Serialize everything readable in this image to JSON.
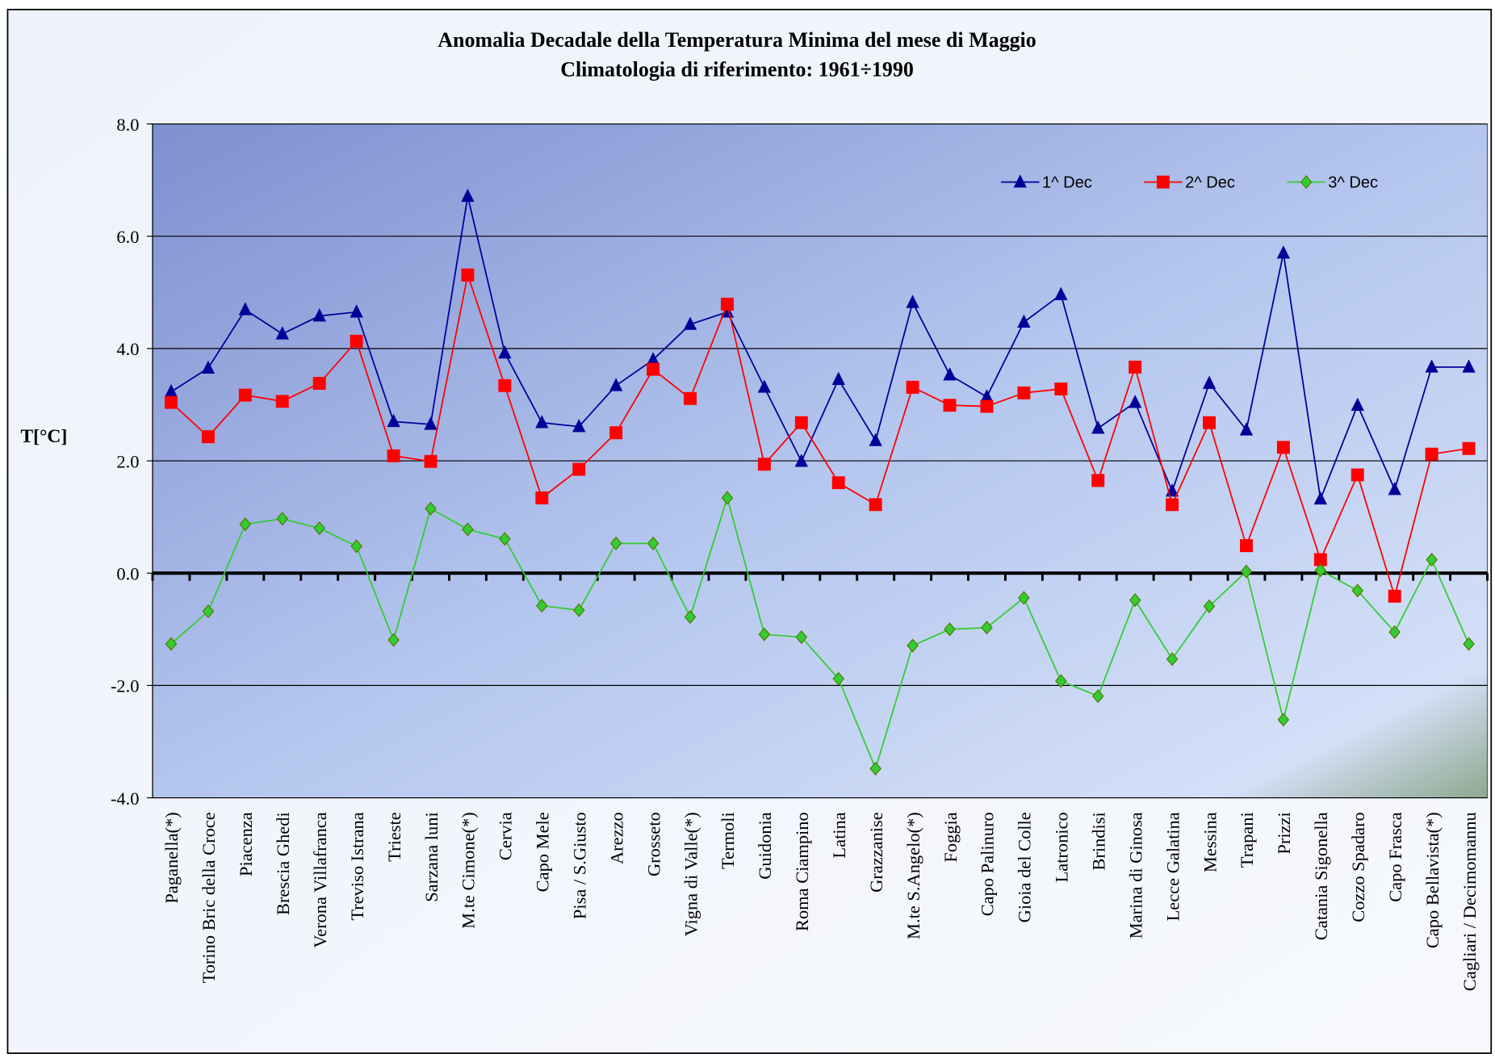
{
  "chart_data": {
    "type": "line",
    "title": "Anomalia Decadale della Temperatura Minima del mese di Maggio",
    "subtitle": "Climatologia di riferimento: 1961÷1990",
    "y_label": "T[°C]",
    "categories": [
      "Paganella(*)",
      "Torino Bric della Croce",
      "Piacenza",
      "Brescia Ghedi",
      "Verona Villafranca",
      "Treviso Istrana",
      "Trieste",
      "Sarzana luni",
      "M.te Cimone(*)",
      "Cervia",
      "Capo Mele",
      "Pisa / S.Giusto",
      "Arezzo",
      "Grosseto",
      "Vigna di Valle(*)",
      "Termoli",
      "Guidonia",
      "Roma Ciampino",
      "Latina",
      "Grazzanise",
      "M.te S.Angelo(*)",
      "Foggia",
      "Capo Palinuro",
      "Gioia del Colle",
      "Latronico",
      "Brindisi",
      "Marina di Ginosa",
      "Lecce Galatina",
      "Messina",
      "Trapani",
      "Prizzi",
      "Catania Sigonella",
      "Cozzo Spadaro",
      "Capo Frasca",
      "Capo Bellavista(*)",
      "Cagliari / Decimomannu"
    ],
    "series": [
      {
        "name": "1^ Dec",
        "color": "#000099",
        "marker": "triangle",
        "values": [
          3.23,
          3.65,
          4.69,
          4.26,
          4.58,
          4.65,
          2.7,
          2.65,
          6.71,
          3.92,
          2.68,
          2.61,
          3.34,
          3.8,
          4.43,
          4.65,
          3.31,
          1.99,
          3.45,
          2.36,
          4.82,
          3.53,
          3.14,
          4.47,
          4.96,
          2.58,
          3.04,
          1.46,
          3.38,
          2.55,
          5.7,
          1.32,
          2.99,
          1.49,
          3.67,
          3.67
        ]
      },
      {
        "name": "2^ Dec",
        "color": "#ff0000",
        "marker": "square",
        "values": [
          3.04,
          2.43,
          3.17,
          3.06,
          3.38,
          4.13,
          2.09,
          1.99,
          5.31,
          3.34,
          1.34,
          1.85,
          2.5,
          3.63,
          3.11,
          4.79,
          1.94,
          2.68,
          1.61,
          1.22,
          3.31,
          2.99,
          2.97,
          3.21,
          3.28,
          1.65,
          3.67,
          1.22,
          2.68,
          0.49,
          2.24,
          0.24,
          1.75,
          -0.41,
          2.12,
          2.22
        ]
      },
      {
        "name": "3^ Dec",
        "color": "#33cc33",
        "marker": "diamond",
        "values": [
          -1.26,
          -0.68,
          0.87,
          0.97,
          0.8,
          0.48,
          -1.19,
          1.15,
          0.78,
          0.61,
          -0.58,
          -0.66,
          0.53,
          0.53,
          -0.78,
          1.34,
          -1.09,
          -1.14,
          -1.88,
          -3.48,
          -1.29,
          -1.0,
          -0.97,
          -0.44,
          -1.92,
          -2.19,
          -0.48,
          -1.53,
          -0.59,
          0.03,
          -2.61,
          0.05,
          -0.31,
          -1.05,
          0.24,
          -1.26
        ]
      }
    ],
    "ylim": [
      -4,
      8
    ],
    "yticks": [
      {
        "value": -4,
        "label": "-4.0"
      },
      {
        "value": -2,
        "label": "-2.0"
      },
      {
        "value": 0,
        "label": "0.0"
      },
      {
        "value": 2,
        "label": "2.0"
      },
      {
        "value": 4,
        "label": "4.0"
      },
      {
        "value": 6,
        "label": "6.0"
      },
      {
        "value": 8,
        "label": "8.0"
      }
    ],
    "grid": true,
    "legend": "top-right"
  }
}
